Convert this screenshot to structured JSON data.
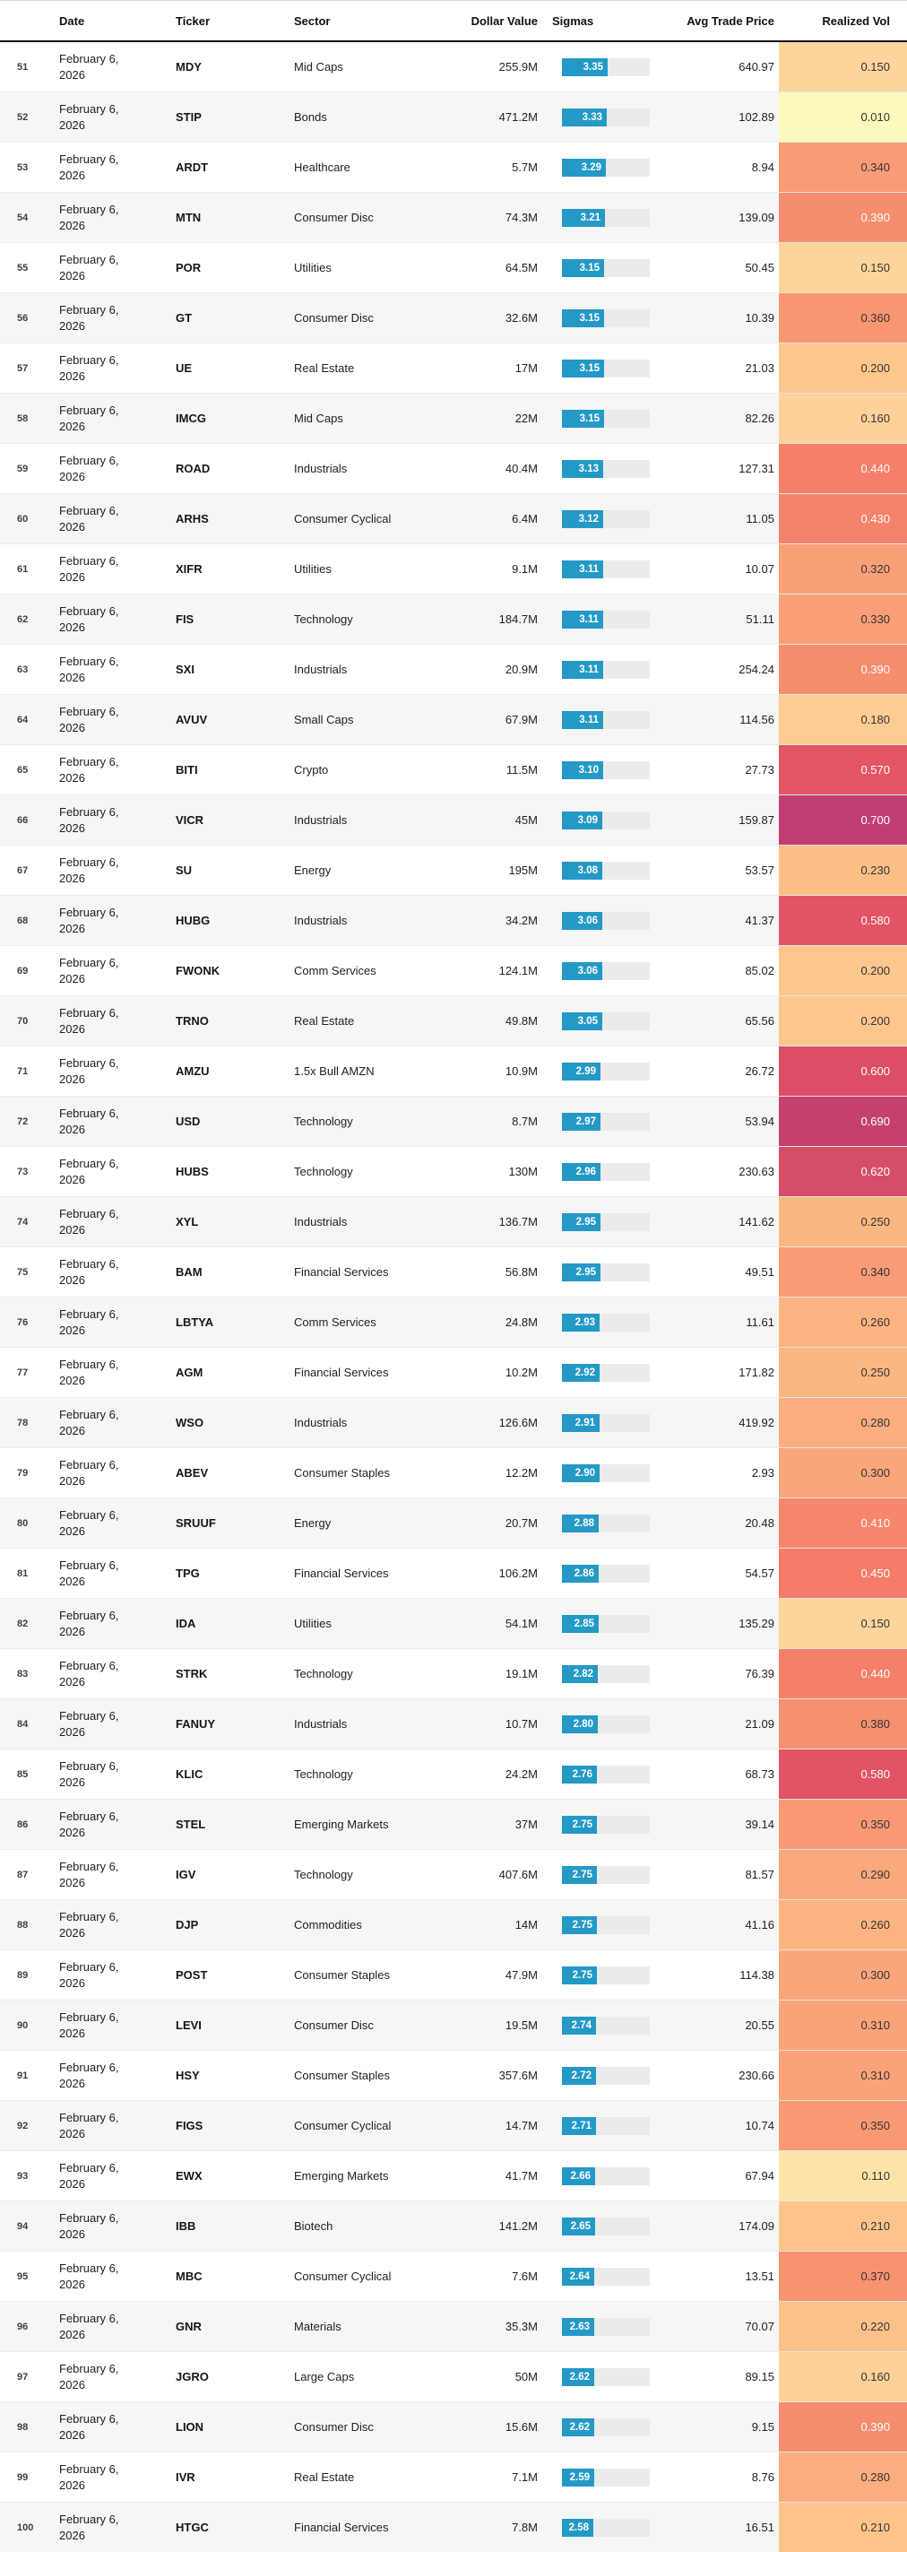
{
  "table": {
    "columns": [
      {
        "key": "num",
        "label": ""
      },
      {
        "key": "date",
        "label": "Date"
      },
      {
        "key": "ticker",
        "label": "Ticker"
      },
      {
        "key": "sector",
        "label": "Sector"
      },
      {
        "key": "dollar_value",
        "label": "Dollar Value"
      },
      {
        "key": "sigmas",
        "label": "Sigmas"
      },
      {
        "key": "avg_trade_price",
        "label": "Avg Trade Price"
      },
      {
        "key": "realized_vol",
        "label": "Realized Vol"
      }
    ],
    "rows": [
      {
        "num": "51",
        "date": "February 6, 2026",
        "ticker": "MDY",
        "sector": "Mid Caps",
        "dollar_value": "255.9M",
        "sigmas": "3.35",
        "avg_trade_price": "640.97",
        "realized_vol": "0.150"
      },
      {
        "num": "52",
        "date": "February 6, 2026",
        "ticker": "STIP",
        "sector": "Bonds",
        "dollar_value": "471.2M",
        "sigmas": "3.33",
        "avg_trade_price": "102.89",
        "realized_vol": "0.010"
      },
      {
        "num": "53",
        "date": "February 6, 2026",
        "ticker": "ARDT",
        "sector": "Healthcare",
        "dollar_value": "5.7M",
        "sigmas": "3.29",
        "avg_trade_price": "8.94",
        "realized_vol": "0.340"
      },
      {
        "num": "54",
        "date": "February 6, 2026",
        "ticker": "MTN",
        "sector": "Consumer Disc",
        "dollar_value": "74.3M",
        "sigmas": "3.21",
        "avg_trade_price": "139.09",
        "realized_vol": "0.390"
      },
      {
        "num": "55",
        "date": "February 6, 2026",
        "ticker": "POR",
        "sector": "Utilities",
        "dollar_value": "64.5M",
        "sigmas": "3.15",
        "avg_trade_price": "50.45",
        "realized_vol": "0.150"
      },
      {
        "num": "56",
        "date": "February 6, 2026",
        "ticker": "GT",
        "sector": "Consumer Disc",
        "dollar_value": "32.6M",
        "sigmas": "3.15",
        "avg_trade_price": "10.39",
        "realized_vol": "0.360"
      },
      {
        "num": "57",
        "date": "February 6, 2026",
        "ticker": "UE",
        "sector": "Real Estate",
        "dollar_value": "17M",
        "sigmas": "3.15",
        "avg_trade_price": "21.03",
        "realized_vol": "0.200"
      },
      {
        "num": "58",
        "date": "February 6, 2026",
        "ticker": "IMCG",
        "sector": "Mid Caps",
        "dollar_value": "22M",
        "sigmas": "3.15",
        "avg_trade_price": "82.26",
        "realized_vol": "0.160"
      },
      {
        "num": "59",
        "date": "February 6, 2026",
        "ticker": "ROAD",
        "sector": "Industrials",
        "dollar_value": "40.4M",
        "sigmas": "3.13",
        "avg_trade_price": "127.31",
        "realized_vol": "0.440"
      },
      {
        "num": "60",
        "date": "February 6, 2026",
        "ticker": "ARHS",
        "sector": "Consumer Cyclical",
        "dollar_value": "6.4M",
        "sigmas": "3.12",
        "avg_trade_price": "11.05",
        "realized_vol": "0.430"
      },
      {
        "num": "61",
        "date": "February 6, 2026",
        "ticker": "XIFR",
        "sector": "Utilities",
        "dollar_value": "9.1M",
        "sigmas": "3.11",
        "avg_trade_price": "10.07",
        "realized_vol": "0.320"
      },
      {
        "num": "62",
        "date": "February 6, 2026",
        "ticker": "FIS",
        "sector": "Technology",
        "dollar_value": "184.7M",
        "sigmas": "3.11",
        "avg_trade_price": "51.11",
        "realized_vol": "0.330"
      },
      {
        "num": "63",
        "date": "February 6, 2026",
        "ticker": "SXI",
        "sector": "Industrials",
        "dollar_value": "20.9M",
        "sigmas": "3.11",
        "avg_trade_price": "254.24",
        "realized_vol": "0.390"
      },
      {
        "num": "64",
        "date": "February 6, 2026",
        "ticker": "AVUV",
        "sector": "Small Caps",
        "dollar_value": "67.9M",
        "sigmas": "3.11",
        "avg_trade_price": "114.56",
        "realized_vol": "0.180"
      },
      {
        "num": "65",
        "date": "February 6, 2026",
        "ticker": "BITI",
        "sector": "Crypto",
        "dollar_value": "11.5M",
        "sigmas": "3.10",
        "avg_trade_price": "27.73",
        "realized_vol": "0.570"
      },
      {
        "num": "66",
        "date": "February 6, 2026",
        "ticker": "VICR",
        "sector": "Industrials",
        "dollar_value": "45M",
        "sigmas": "3.09",
        "avg_trade_price": "159.87",
        "realized_vol": "0.700"
      },
      {
        "num": "67",
        "date": "February 6, 2026",
        "ticker": "SU",
        "sector": "Energy",
        "dollar_value": "195M",
        "sigmas": "3.08",
        "avg_trade_price": "53.57",
        "realized_vol": "0.230"
      },
      {
        "num": "68",
        "date": "February 6, 2026",
        "ticker": "HUBG",
        "sector": "Industrials",
        "dollar_value": "34.2M",
        "sigmas": "3.06",
        "avg_trade_price": "41.37",
        "realized_vol": "0.580"
      },
      {
        "num": "69",
        "date": "February 6, 2026",
        "ticker": "FWONK",
        "sector": "Comm Services",
        "dollar_value": "124.1M",
        "sigmas": "3.06",
        "avg_trade_price": "85.02",
        "realized_vol": "0.200"
      },
      {
        "num": "70",
        "date": "February 6, 2026",
        "ticker": "TRNO",
        "sector": "Real Estate",
        "dollar_value": "49.8M",
        "sigmas": "3.05",
        "avg_trade_price": "65.56",
        "realized_vol": "0.200"
      },
      {
        "num": "71",
        "date": "February 6, 2026",
        "ticker": "AMZU",
        "sector": "1.5x Bull AMZN",
        "dollar_value": "10.9M",
        "sigmas": "2.99",
        "avg_trade_price": "26.72",
        "realized_vol": "0.600"
      },
      {
        "num": "72",
        "date": "February 6, 2026",
        "ticker": "USD",
        "sector": "Technology",
        "dollar_value": "8.7M",
        "sigmas": "2.97",
        "avg_trade_price": "53.94",
        "realized_vol": "0.690"
      },
      {
        "num": "73",
        "date": "February 6, 2026",
        "ticker": "HUBS",
        "sector": "Technology",
        "dollar_value": "130M",
        "sigmas": "2.96",
        "avg_trade_price": "230.63",
        "realized_vol": "0.620"
      },
      {
        "num": "74",
        "date": "February 6, 2026",
        "ticker": "XYL",
        "sector": "Industrials",
        "dollar_value": "136.7M",
        "sigmas": "2.95",
        "avg_trade_price": "141.62",
        "realized_vol": "0.250"
      },
      {
        "num": "75",
        "date": "February 6, 2026",
        "ticker": "BAM",
        "sector": "Financial Services",
        "dollar_value": "56.8M",
        "sigmas": "2.95",
        "avg_trade_price": "49.51",
        "realized_vol": "0.340"
      },
      {
        "num": "76",
        "date": "February 6, 2026",
        "ticker": "LBTYA",
        "sector": "Comm Services",
        "dollar_value": "24.8M",
        "sigmas": "2.93",
        "avg_trade_price": "11.61",
        "realized_vol": "0.260"
      },
      {
        "num": "77",
        "date": "February 6, 2026",
        "ticker": "AGM",
        "sector": "Financial Services",
        "dollar_value": "10.2M",
        "sigmas": "2.92",
        "avg_trade_price": "171.82",
        "realized_vol": "0.250"
      },
      {
        "num": "78",
        "date": "February 6, 2026",
        "ticker": "WSO",
        "sector": "Industrials",
        "dollar_value": "126.6M",
        "sigmas": "2.91",
        "avg_trade_price": "419.92",
        "realized_vol": "0.280"
      },
      {
        "num": "79",
        "date": "February 6, 2026",
        "ticker": "ABEV",
        "sector": "Consumer Staples",
        "dollar_value": "12.2M",
        "sigmas": "2.90",
        "avg_trade_price": "2.93",
        "realized_vol": "0.300"
      },
      {
        "num": "80",
        "date": "February 6, 2026",
        "ticker": "SRUUF",
        "sector": "Energy",
        "dollar_value": "20.7M",
        "sigmas": "2.88",
        "avg_trade_price": "20.48",
        "realized_vol": "0.410"
      },
      {
        "num": "81",
        "date": "February 6, 2026",
        "ticker": "TPG",
        "sector": "Financial Services",
        "dollar_value": "106.2M",
        "sigmas": "2.86",
        "avg_trade_price": "54.57",
        "realized_vol": "0.450"
      },
      {
        "num": "82",
        "date": "February 6, 2026",
        "ticker": "IDA",
        "sector": "Utilities",
        "dollar_value": "54.1M",
        "sigmas": "2.85",
        "avg_trade_price": "135.29",
        "realized_vol": "0.150"
      },
      {
        "num": "83",
        "date": "February 6, 2026",
        "ticker": "STRK",
        "sector": "Technology",
        "dollar_value": "19.1M",
        "sigmas": "2.82",
        "avg_trade_price": "76.39",
        "realized_vol": "0.440"
      },
      {
        "num": "84",
        "date": "February 6, 2026",
        "ticker": "FANUY",
        "sector": "Industrials",
        "dollar_value": "10.7M",
        "sigmas": "2.80",
        "avg_trade_price": "21.09",
        "realized_vol": "0.380"
      },
      {
        "num": "85",
        "date": "February 6, 2026",
        "ticker": "KLIC",
        "sector": "Technology",
        "dollar_value": "24.2M",
        "sigmas": "2.76",
        "avg_trade_price": "68.73",
        "realized_vol": "0.580"
      },
      {
        "num": "86",
        "date": "February 6, 2026",
        "ticker": "STEL",
        "sector": "Emerging Markets",
        "dollar_value": "37M",
        "sigmas": "2.75",
        "avg_trade_price": "39.14",
        "realized_vol": "0.350"
      },
      {
        "num": "87",
        "date": "February 6, 2026",
        "ticker": "IGV",
        "sector": "Technology",
        "dollar_value": "407.6M",
        "sigmas": "2.75",
        "avg_trade_price": "81.57",
        "realized_vol": "0.290"
      },
      {
        "num": "88",
        "date": "February 6, 2026",
        "ticker": "DJP",
        "sector": "Commodities",
        "dollar_value": "14M",
        "sigmas": "2.75",
        "avg_trade_price": "41.16",
        "realized_vol": "0.260"
      },
      {
        "num": "89",
        "date": "February 6, 2026",
        "ticker": "POST",
        "sector": "Consumer Staples",
        "dollar_value": "47.9M",
        "sigmas": "2.75",
        "avg_trade_price": "114.38",
        "realized_vol": "0.300"
      },
      {
        "num": "90",
        "date": "February 6, 2026",
        "ticker": "LEVI",
        "sector": "Consumer Disc",
        "dollar_value": "19.5M",
        "sigmas": "2.74",
        "avg_trade_price": "20.55",
        "realized_vol": "0.310"
      },
      {
        "num": "91",
        "date": "February 6, 2026",
        "ticker": "HSY",
        "sector": "Consumer Staples",
        "dollar_value": "357.6M",
        "sigmas": "2.72",
        "avg_trade_price": "230.66",
        "realized_vol": "0.310"
      },
      {
        "num": "92",
        "date": "February 6, 2026",
        "ticker": "FIGS",
        "sector": "Consumer Cyclical",
        "dollar_value": "14.7M",
        "sigmas": "2.71",
        "avg_trade_price": "10.74",
        "realized_vol": "0.350"
      },
      {
        "num": "93",
        "date": "February 6, 2026",
        "ticker": "EWX",
        "sector": "Emerging Markets",
        "dollar_value": "41.7M",
        "sigmas": "2.66",
        "avg_trade_price": "67.94",
        "realized_vol": "0.110"
      },
      {
        "num": "94",
        "date": "February 6, 2026",
        "ticker": "IBB",
        "sector": "Biotech",
        "dollar_value": "141.2M",
        "sigmas": "2.65",
        "avg_trade_price": "174.09",
        "realized_vol": "0.210"
      },
      {
        "num": "95",
        "date": "February 6, 2026",
        "ticker": "MBC",
        "sector": "Consumer Cyclical",
        "dollar_value": "7.6M",
        "sigmas": "2.64",
        "avg_trade_price": "13.51",
        "realized_vol": "0.370"
      },
      {
        "num": "96",
        "date": "February 6, 2026",
        "ticker": "GNR",
        "sector": "Materials",
        "dollar_value": "35.3M",
        "sigmas": "2.63",
        "avg_trade_price": "70.07",
        "realized_vol": "0.220"
      },
      {
        "num": "97",
        "date": "February 6, 2026",
        "ticker": "JGRO",
        "sector": "Large Caps",
        "dollar_value": "50M",
        "sigmas": "2.62",
        "avg_trade_price": "89.15",
        "realized_vol": "0.160"
      },
      {
        "num": "98",
        "date": "February 6, 2026",
        "ticker": "LION",
        "sector": "Consumer Disc",
        "dollar_value": "15.6M",
        "sigmas": "2.62",
        "avg_trade_price": "9.15",
        "realized_vol": "0.390"
      },
      {
        "num": "99",
        "date": "February 6, 2026",
        "ticker": "IVR",
        "sector": "Real Estate",
        "dollar_value": "7.1M",
        "sigmas": "2.59",
        "avg_trade_price": "8.76",
        "realized_vol": "0.280"
      },
      {
        "num": "100",
        "date": "February 6, 2026",
        "ticker": "HTGC",
        "sector": "Financial Services",
        "dollar_value": "7.8M",
        "sigmas": "2.58",
        "avg_trade_price": "16.51",
        "realized_vol": "0.210"
      }
    ]
  },
  "styles": {
    "sigma_bar": {
      "fill_color": "#2499c6",
      "track_color": "#ebebeb",
      "value_text_color": "#ffffff",
      "scale_slope": 0.2013,
      "scale_intercept": -0.159
    },
    "vol_heatmap": {
      "white_text_threshold": 0.385,
      "dark_text_color": "#333333",
      "white_text_color": "#ffffff",
      "color_scale": [
        {
          "v": 0.01,
          "c": "#FBFABC"
        },
        {
          "v": 0.11,
          "c": "#FCE4A9"
        },
        {
          "v": 0.15,
          "c": "#FDD49B"
        },
        {
          "v": 0.23,
          "c": "#FBBE85"
        },
        {
          "v": 0.3,
          "c": "#FAA67B"
        },
        {
          "v": 0.44,
          "c": "#F57F69"
        },
        {
          "v": 0.57,
          "c": "#E45565"
        },
        {
          "v": 0.6,
          "c": "#DC4E66"
        },
        {
          "v": 0.62,
          "c": "#D54E68"
        },
        {
          "v": 0.69,
          "c": "#C3406F"
        },
        {
          "v": 0.7,
          "c": "#C13E73"
        }
      ]
    }
  }
}
